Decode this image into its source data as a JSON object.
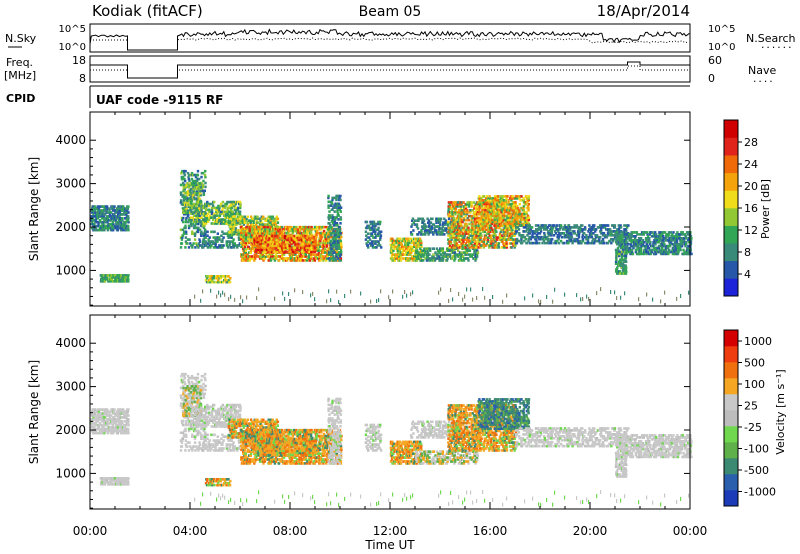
{
  "header": {
    "station": "Kodiak (fitACF)",
    "beam": "Beam 05",
    "date": "18/Apr/2014"
  },
  "panels": {
    "nsky": {
      "left_label": "N.Sky",
      "left_ticks": [
        "10^5",
        "10^0"
      ],
      "right_ticks": [
        "10^5",
        "10^0"
      ],
      "right_label": "N.Search",
      "right_label_marker": "......"
    },
    "freq": {
      "left_label_1": "Freq.",
      "left_label_2": "[MHz]",
      "left_ticks": [
        "18",
        "8"
      ],
      "right_ticks": [
        "60",
        "0"
      ],
      "right_label": "Nave",
      "right_label_marker": "...."
    },
    "cpid": {
      "left_label": "CPID",
      "text": "UAF code -9115 RF"
    }
  },
  "colors": {
    "power_scale": [
      "#1d23d8",
      "#2657a8",
      "#3a8a7a",
      "#33a655",
      "#92c833",
      "#f0dc1a",
      "#f5a30a",
      "#f06a0a",
      "#e0241b",
      "#d00000"
    ],
    "velocity_scale": [
      "#1c3bb8",
      "#2a5fae",
      "#3d8a72",
      "#5fb04a",
      "#6fd84f",
      "#bdbdbd",
      "#c8c8c8",
      "#f5a623",
      "#f07010",
      "#ef3d10",
      "#d40000"
    ]
  },
  "chart_data": [
    {
      "type": "heatmap",
      "title": "Power",
      "ylabel": "Slant Range [km]",
      "yticks": [
        "1000",
        "2000",
        "3000",
        "4000"
      ],
      "ylim": [
        180,
        4650
      ],
      "xlim": [
        0,
        24
      ],
      "colorbar_label": "Power [dB]",
      "colorbar_ticks": [
        "4",
        "8",
        "12",
        "16",
        "20",
        "24",
        "28"
      ],
      "colorbar_range": [
        0,
        32
      ]
    },
    {
      "type": "heatmap",
      "title": "Velocity",
      "ylabel": "Slant Range [km]",
      "yticks": [
        "1000",
        "2000",
        "3000",
        "4000"
      ],
      "ylim": [
        180,
        4650
      ],
      "xlim": [
        0,
        24
      ],
      "xlabel": "Time UT",
      "xticks": [
        "00:00",
        "04:00",
        "08:00",
        "12:00",
        "16:00",
        "20:00",
        "00:00"
      ],
      "colorbar_label": "Velocity [m s⁻¹]",
      "colorbar_ticks": [
        "1000",
        "500",
        "100",
        "25",
        "-25",
        "-100",
        "-500",
        "-1000"
      ]
    }
  ]
}
